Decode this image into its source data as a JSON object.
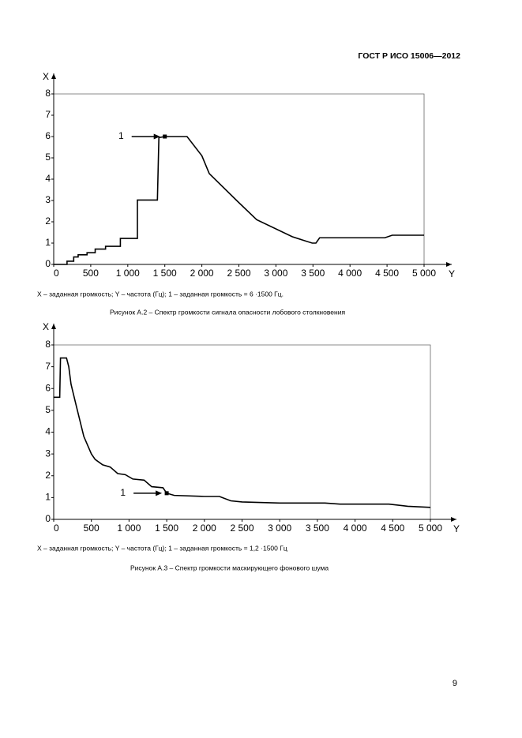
{
  "header": {
    "title": "ГОСТ Р ИСО 15006—2012"
  },
  "chart_data": [
    {
      "type": "line",
      "xlabel": "Y",
      "ylabel": "X",
      "note": "X – заданная громкость; Y – частота (Гц); 1 – заданная громкость = 6 ·1500 Гц.",
      "caption": "Рисунок А.2 – Спектр громкости сигнала опасности лобового столкновения",
      "x": [
        0,
        180,
        180,
        270,
        270,
        330,
        330,
        450,
        450,
        560,
        560,
        700,
        700,
        900,
        900,
        1130,
        1130,
        1400,
        1420,
        1500,
        1800,
        2000,
        2100,
        2470,
        2740,
        3220,
        3490,
        3540,
        3590,
        4470,
        4570,
        5000
      ],
      "values": [
        0,
        0,
        0.15,
        0.15,
        0.35,
        0.35,
        0.45,
        0.45,
        0.55,
        0.55,
        0.72,
        0.72,
        0.85,
        0.85,
        1.22,
        1.22,
        3.02,
        3.02,
        5.95,
        6,
        6,
        5.1,
        4.26,
        3.0,
        2.1,
        1.3,
        1.0,
        1.0,
        1.25,
        1.25,
        1.37,
        1.37
      ],
      "color": "#000000",
      "annotation": {
        "text": "1",
        "x": 1500,
        "y": 6
      },
      "xlim": [
        0,
        5000
      ],
      "ylim": [
        0,
        8
      ],
      "xticks": [
        0,
        500,
        {
          "value": 1000,
          "label": "1 000"
        },
        {
          "value": 1500,
          "label": "1 500"
        },
        {
          "value": 2000,
          "label": "2 000"
        },
        {
          "value": 2500,
          "label": "2 500"
        },
        {
          "value": 3000,
          "label": "3 000"
        },
        {
          "value": 3500,
          "label": "3 500"
        },
        {
          "value": 4000,
          "label": "4 000"
        },
        {
          "value": 4500,
          "label": "4 500"
        },
        {
          "value": 5000,
          "label": "5 000"
        }
      ],
      "yticks": [
        0,
        1,
        2,
        3,
        4,
        5,
        6,
        7,
        8
      ]
    },
    {
      "type": "line",
      "xlabel": "Y",
      "ylabel": "X",
      "note": "X – заданная громкость; Y – частота (Гц); 1 – заданная громкость = 1,2 ·1500 Гц",
      "caption": "Рисунок А.3 – Спектр громкости маскирующего фонового шума",
      "x": [
        0,
        80,
        90,
        170,
        200,
        230,
        300,
        400,
        500,
        550,
        650,
        750,
        850,
        950,
        1050,
        1200,
        1300,
        1450,
        1500,
        1600,
        2000,
        2200,
        2350,
        2500,
        3000,
        3600,
        3800,
        4450,
        4700,
        5000
      ],
      "values": [
        5.6,
        5.6,
        7.4,
        7.4,
        7.0,
        6.2,
        5.2,
        3.8,
        3.0,
        2.75,
        2.5,
        2.4,
        2.1,
        2.05,
        1.85,
        1.8,
        1.5,
        1.45,
        1.2,
        1.1,
        1.05,
        1.05,
        0.85,
        0.8,
        0.75,
        0.75,
        0.7,
        0.7,
        0.6,
        0.55
      ],
      "color": "#000000",
      "annotation": {
        "text": "1",
        "x": 1500,
        "y": 1.2
      },
      "xlim": [
        0,
        5000
      ],
      "ylim": [
        0,
        8
      ],
      "xticks": [
        0,
        500,
        {
          "value": 1000,
          "label": "1 000"
        },
        {
          "value": 1500,
          "label": "1 500"
        },
        {
          "value": 2000,
          "label": "2 000"
        },
        {
          "value": 2500,
          "label": "2 500"
        },
        {
          "value": 3000,
          "label": "3 000"
        },
        {
          "value": 3500,
          "label": "3 500"
        },
        {
          "value": 4000,
          "label": "4 000"
        },
        {
          "value": 4500,
          "label": "4 500"
        },
        {
          "value": 5000,
          "label": "5 000"
        }
      ],
      "yticks": [
        0,
        1,
        2,
        3,
        4,
        5,
        6,
        7,
        8
      ]
    }
  ],
  "page_number": "9"
}
